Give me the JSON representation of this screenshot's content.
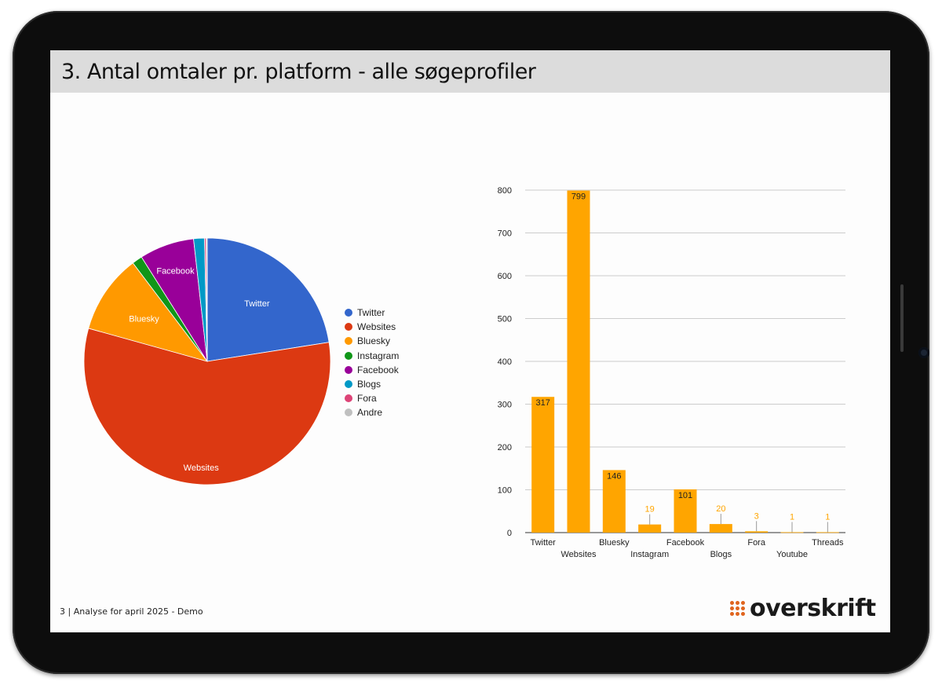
{
  "slide": {
    "title": "3. Antal omtaler pr. platform - alle søgeprofiler",
    "footer": "3 | Analyse for april 2025 - Demo",
    "logo_text": "overskrift",
    "logo_color": "#e0651f"
  },
  "chart_data": [
    {
      "type": "pie",
      "slices": [
        {
          "label": "Twitter",
          "value": 317,
          "color": "#3366cc"
        },
        {
          "label": "Websites",
          "value": 799,
          "color": "#dc3912"
        },
        {
          "label": "Bluesky",
          "value": 146,
          "color": "#ff9900"
        },
        {
          "label": "Instagram",
          "value": 19,
          "color": "#109618"
        },
        {
          "label": "Facebook",
          "value": 101,
          "color": "#990099"
        },
        {
          "label": "Blogs",
          "value": 20,
          "color": "#0099c6"
        },
        {
          "label": "Fora",
          "value": 3,
          "color": "#dd4477"
        },
        {
          "label": "Andre",
          "value": 2,
          "color": "#c0c0c0"
        }
      ],
      "slice_labels_shown": [
        "Twitter",
        "Websites",
        "Bluesky",
        "Facebook"
      ],
      "legend": [
        "Twitter",
        "Websites",
        "Bluesky",
        "Instagram",
        "Facebook",
        "Blogs",
        "Fora",
        "Andre"
      ],
      "legend_position": "right"
    },
    {
      "type": "bar",
      "categories": [
        "Twitter",
        "Websites",
        "Bluesky",
        "Instagram",
        "Facebook",
        "Blogs",
        "Fora",
        "Youtube",
        "Threads"
      ],
      "values": [
        317,
        799,
        146,
        19,
        101,
        20,
        3,
        1,
        1
      ],
      "value_labels": [
        "317",
        "799",
        "146",
        "19",
        "101",
        "20",
        "3",
        "1",
        "1"
      ],
      "yticks": [
        "0",
        "100",
        "200",
        "300",
        "400",
        "500",
        "600",
        "700",
        "800"
      ],
      "ylim": [
        0,
        800
      ],
      "bar_color": "#ffa500",
      "grid": true
    }
  ]
}
